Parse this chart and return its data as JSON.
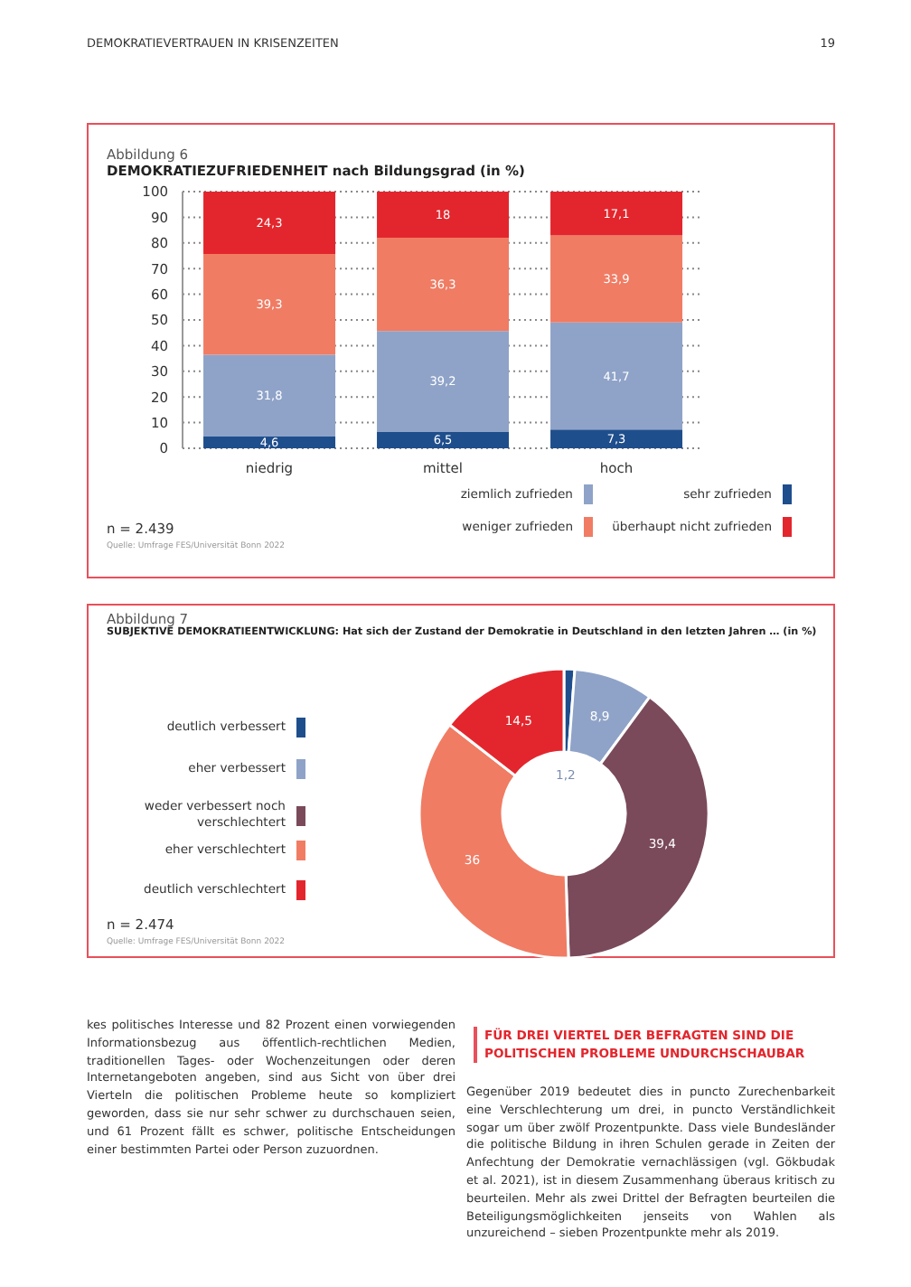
{
  "chart_data": [
    {
      "type": "bar",
      "subtitle": "Abbildung 6",
      "title": "DEMOKRATIEZUFRIEDENHEIT nach Bildungsgrad (in %)",
      "categories": [
        "niedrig",
        "mittel",
        "hoch"
      ],
      "stacked": true,
      "series": [
        {
          "name": "sehr zufrieden",
          "color": "#1f4e8c",
          "values": [
            4.6,
            6.5,
            7.3
          ],
          "value_labels": [
            "4,6",
            "6,5",
            "7,3"
          ]
        },
        {
          "name": "ziemlich zufrieden",
          "color": "#8fa3c8",
          "values": [
            31.8,
            39.2,
            41.7
          ],
          "value_labels": [
            "31,8",
            "39,2",
            "41,7"
          ]
        },
        {
          "name": "weniger zufrieden",
          "color": "#f07c64",
          "values": [
            39.3,
            36.3,
            33.9
          ],
          "value_labels": [
            "39,3",
            "36,3",
            "33,9"
          ]
        },
        {
          "name": "überhaupt nicht zufrieden",
          "color": "#e3262d",
          "values": [
            24.3,
            18,
            17.1
          ],
          "value_labels": [
            "24,3",
            "18",
            "17,1"
          ]
        }
      ],
      "ylim": [
        0,
        100
      ],
      "yticks": [
        0,
        10,
        20,
        30,
        40,
        50,
        60,
        70,
        80,
        90,
        100
      ],
      "grid": "y",
      "legend": "bottom right",
      "annotations": [
        "DEMOKRATIEVERTRAUEN IN KRISENZEITEN",
        "19",
        "n = 2.439",
        "Quelle: Umfrage FES/Universität Bonn 2022"
      ]
    },
    {
      "type": "donut",
      "subtitle": "Abbildung 7",
      "title": "SUBJEKTIVE DEMOKRATIEENTWICKLUNG: Hat sich der Zustand der Demokratie in Deutschland in den letzten Jahren … (in %)",
      "categories": [
        "deutlich verbessert",
        "eher verbessert",
        "weder verbessert noch verschlechtert",
        "eher verschlechtert",
        "deutlich verschlechtert"
      ],
      "values": [
        1.2,
        8.9,
        39.4,
        36,
        14.5
      ],
      "colors": [
        "#1f4e8c",
        "#8fa3c8",
        "#7a4a5a",
        "#f07c64",
        "#e3262d"
      ],
      "value_labels": [
        "1,2",
        "8,9",
        "39,4",
        "36",
        "14,5"
      ],
      "legend": "left",
      "annotations": [
        "n = 2.474",
        "Quelle: Umfrage FES/Universität Bonn 2022",
        "kes politisches Interesse und 82 Prozent einen vorwiegenden Informationsbezug aus öffentlich-rechtlichen Medien, traditionellen Tages- oder Wochenzeitungen oder deren Internetangeboten angeben, sind aus Sicht von über drei Vierteln die politischen Probleme heute so kompliziert geworden, dass sie nur sehr schwer zu durchschauen seien, und 61 Prozent fällt es schwer, politische Entscheidungen einer bestimmten Partei oder Person zuzuordnen.",
        "FÜR DREI VIERTEL DER BEFRAGTEN SIND DIE POLITISCHEN PROBLEME UNDURCHSCHAUBAR",
        "Gegenüber 2019 bedeutet dies in puncto Zurechenbarkeit eine Verschlechterung um drei, in puncto Verständlichkeit sogar um über zwölf Prozentpunkte. Dass viele Bundesländer die politische Bildung in ihren Schulen gerade in Zeiten der Anfechtung der Demokratie vernachlässigen (vgl. Gökbudak et al. 2021), ist in diesem Zusammenhang überaus kritisch zu beurteilen. Mehr als zwei Drittel der Befragten beurteilen die Beteiligungsmöglichkeiten jenseits von Wahlen als unzureichend – sieben Prozentpunkte mehr als 2019."
      ]
    }
  ]
}
